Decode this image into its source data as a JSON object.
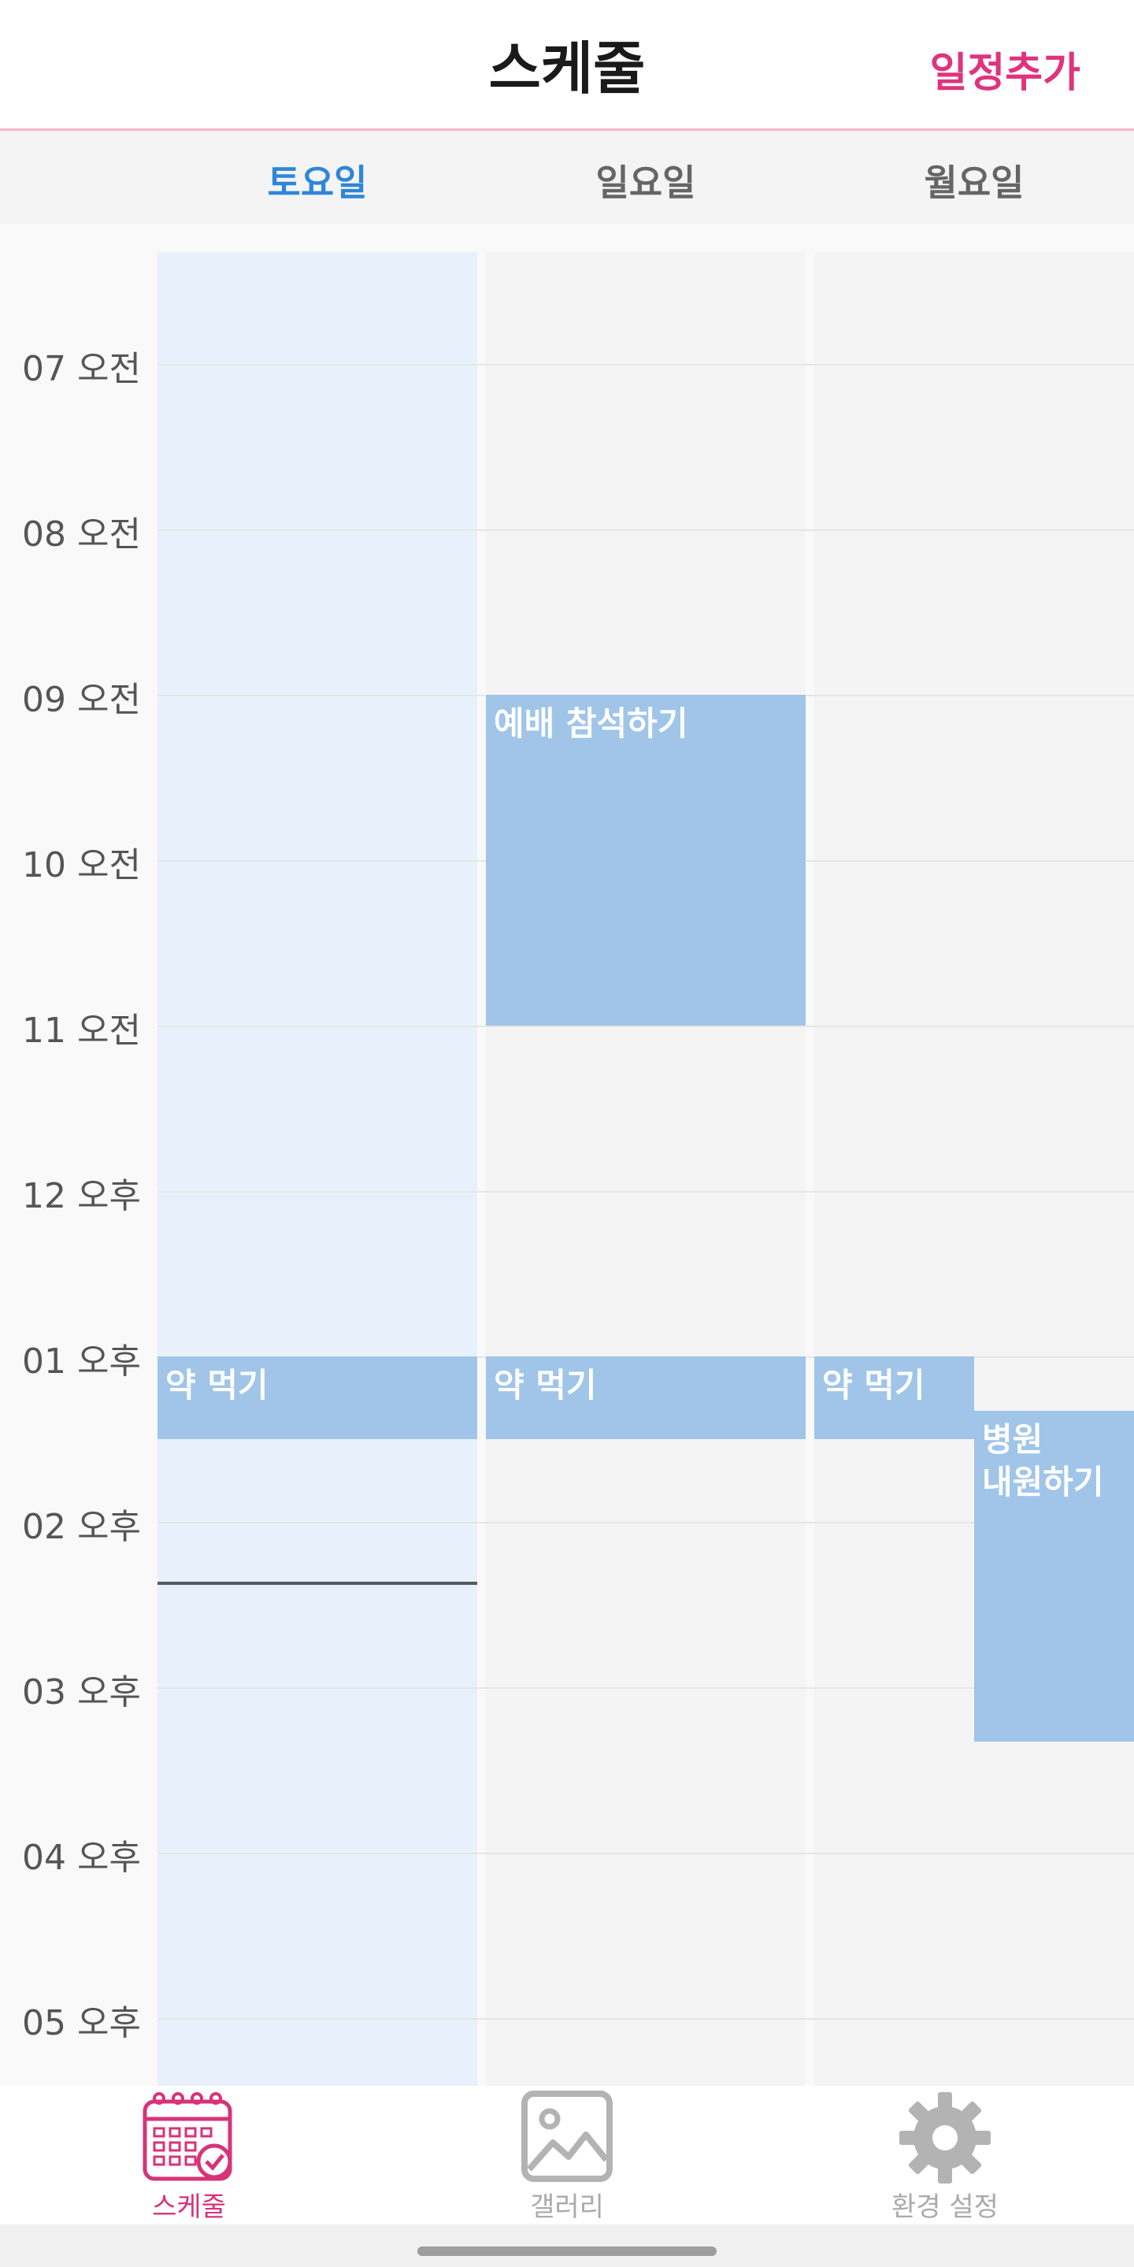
{
  "header": {
    "title": "스케줄",
    "add_label": "일정추가"
  },
  "days": [
    {
      "label": "토요일",
      "active": true
    },
    {
      "label": "일요일",
      "active": false
    },
    {
      "label": "월요일",
      "active": false
    }
  ],
  "time_labels": [
    "07 오전",
    "08 오전",
    "09 오전",
    "10 오전",
    "11 오전",
    "12 오후",
    "01 오후",
    "02 오후",
    "03 오후",
    "04 오후",
    "05 오후"
  ],
  "events": [
    {
      "title": "예배 참석하기",
      "day": 1,
      "start": 9.0,
      "end": 11.0
    },
    {
      "title": "약 먹기",
      "day": 0,
      "start": 13.0,
      "end": 13.5
    },
    {
      "title": "약 먹기",
      "day": 1,
      "start": 13.0,
      "end": 13.5
    },
    {
      "title": "약 먹기",
      "day": 2,
      "start": 13.0,
      "end": 13.5
    },
    {
      "title": "병원\n내원하기",
      "day": 2,
      "start": 13.33,
      "end": 15.33
    }
  ],
  "current_time": 14.36,
  "tabs": [
    {
      "label": "스케줄",
      "icon": "calendar-check-icon",
      "active": true
    },
    {
      "label": "갤러리",
      "icon": "image-icon",
      "active": false
    },
    {
      "label": "환경 설정",
      "icon": "gear-icon",
      "active": false
    }
  ],
  "colors": {
    "accent": "#e0337d",
    "active_day": "#2f86d6",
    "event": "#a0c5e8"
  }
}
